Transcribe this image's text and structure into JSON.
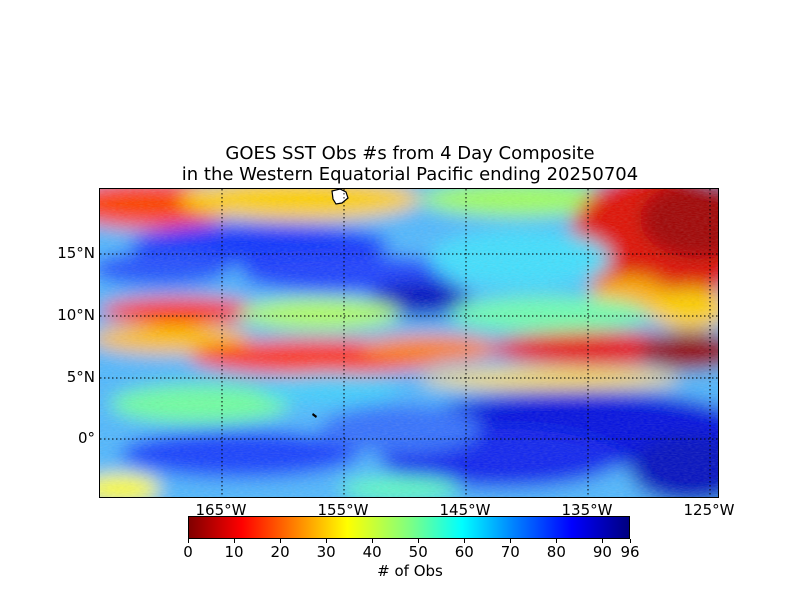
{
  "title": {
    "line1": "GOES SST Obs #s from 4 Day Composite",
    "line2": "in the Western Equatorial Pacific ending 20250704"
  },
  "map": {
    "lon_range": [
      -175,
      -124
    ],
    "lat_range": [
      -5,
      20
    ],
    "lat_labels": [
      "15°N",
      "10°N",
      "5°N",
      "0°"
    ],
    "lon_labels": [
      "165°W",
      "155°W",
      "145°W",
      "135°W",
      "125°W"
    ],
    "gridlines": "dotted"
  },
  "colorbar": {
    "label": "# of Obs",
    "ticks": [
      "0",
      "10",
      "20",
      "30",
      "40",
      "50",
      "60",
      "70",
      "80",
      "90",
      "96"
    ],
    "range": [
      0,
      96
    ],
    "colormap": [
      "#800000",
      "#ff0000",
      "#ff8000",
      "#ffff00",
      "#80ff80",
      "#00ffff",
      "#0080ff",
      "#0000ff",
      "#000080"
    ]
  }
}
